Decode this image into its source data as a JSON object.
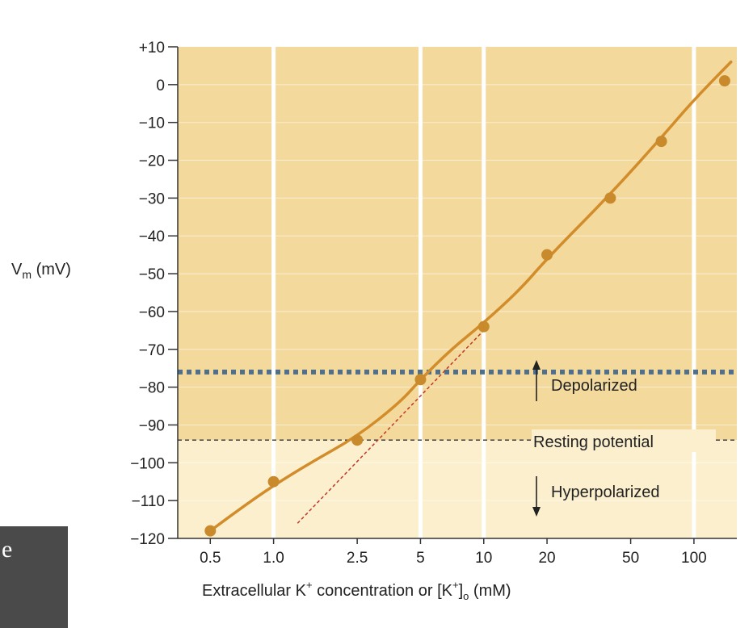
{
  "chart_data": {
    "type": "scatter",
    "x_scale": "log",
    "ylabel": {
      "main": "V",
      "sub": "m",
      "unit": " (mV)"
    },
    "xlabel": {
      "pre": "Extracellular K",
      "sup1": "+",
      "mid": " concentration or [K",
      "sup2": "+",
      "mid2": "]",
      "sub": "o",
      "post": " (mM)"
    },
    "ylim": [
      -120,
      10
    ],
    "xlim": [
      0.35,
      160
    ],
    "y_ticks": [
      10,
      0,
      -10,
      -20,
      -30,
      -40,
      -50,
      -60,
      -70,
      -80,
      -90,
      -100,
      -110,
      -120
    ],
    "y_tick_labels": [
      "+10",
      "0",
      "−10",
      "−20",
      "−30",
      "−40",
      "−50",
      "−60",
      "−70",
      "−80",
      "−90",
      "−100",
      "−110",
      "−120"
    ],
    "x_ticks": [
      0.5,
      1.0,
      2.5,
      5,
      10,
      20,
      50,
      100
    ],
    "x_tick_labels": [
      "0.5",
      "1.0",
      "2.5",
      "5",
      "10",
      "20",
      "50",
      "100"
    ],
    "grid_x": [
      1.0,
      5,
      10,
      100
    ],
    "series": [
      {
        "kind": "points",
        "x": [
          0.5,
          1.0,
          2.5,
          5,
          10,
          20,
          40,
          70,
          140
        ],
        "y": [
          -118,
          -105,
          -94,
          -78,
          -64,
          -45,
          -30,
          -15,
          1
        ]
      },
      {
        "kind": "fit-curve",
        "x": [
          0.5,
          0.7,
          1.0,
          1.5,
          2.5,
          4,
          5,
          7,
          10,
          15,
          20,
          40,
          70,
          100,
          150
        ],
        "y": [
          -118,
          -112,
          -106,
          -100,
          -93,
          -84,
          -78,
          -70,
          -63,
          -54,
          -46,
          -29,
          -14,
          -4,
          6
        ]
      },
      {
        "kind": "nernst-slope",
        "x": [
          1.3,
          10
        ],
        "y": [
          -116,
          -65
        ]
      }
    ],
    "reference_lines": {
      "depolarized_threshold": -76,
      "resting_potential": -94
    },
    "region_labels": {
      "depolarized": "Depolarized",
      "resting": "Resting potential",
      "hyperpolarized": "Hyperpolarized"
    },
    "colors": {
      "upper_region": "#f3d99c",
      "lower_region": "#fbefcd",
      "curve": "#d28c2a",
      "points": "#c98a2c",
      "slope_line": "#c0392b",
      "threshold_line": "#4f6f8a",
      "grid": "#ffffff"
    }
  },
  "corner": {
    "text": "e"
  }
}
